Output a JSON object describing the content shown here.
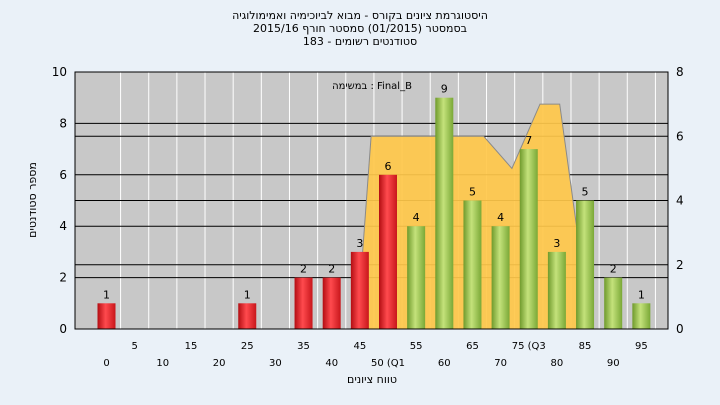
{
  "header": {
    "line1": "היסטוגרמת ציונים בקורס - מבוא לביוכימיה ואמימולוגיה",
    "line2": "בסמסטר (01/2015) סמסטר חורף 2015/16",
    "line3": "סטודנטים רשומים - 183"
  },
  "chart_data": {
    "type": "bar",
    "title": "היסטוגרמת ציונים בקורס - מבוא לביוכימיה ואמימולוגיה",
    "subtitle": "בסמסטר (01/2015) סמסטר חורף 2015/16 | סטודנטים רשומים - 183",
    "xlabel": "טווח ציונים",
    "ylabel": "מספר סטודנטים",
    "ylim": [
      0,
      10
    ],
    "y2lim": [
      0,
      8
    ],
    "yticks": [
      0,
      2,
      4,
      6,
      8,
      10
    ],
    "y2ticks": [
      0,
      2,
      4,
      6,
      8
    ],
    "grid": true,
    "series_label": "במשימה : Final_B",
    "xtick_labels_row1": [
      "5",
      "15",
      "25",
      "35",
      "45",
      "55",
      "65",
      "75 (Q3",
      "85",
      "95"
    ],
    "xtick_labels_row2": [
      "0",
      "10",
      "20",
      "30",
      "40",
      "50 (Q1",
      "60",
      "70",
      "80",
      "90"
    ],
    "categories": [
      "0",
      "5",
      "10",
      "15",
      "20",
      "25",
      "30",
      "35",
      "40",
      "45",
      "50",
      "55",
      "60",
      "65",
      "70",
      "75",
      "80",
      "85",
      "90",
      "95"
    ],
    "series": [
      {
        "values": [
          1,
          0,
          0,
          0,
          0,
          1,
          0,
          2,
          2,
          3,
          6,
          4,
          9,
          5,
          4,
          7,
          3,
          5,
          2,
          1
        ],
        "colors": [
          "red",
          "red",
          "red",
          "red",
          "red",
          "red",
          "red",
          "red",
          "red",
          "red",
          "red",
          "green",
          "green",
          "green",
          "green",
          "green",
          "green",
          "green",
          "green",
          "green"
        ]
      }
    ],
    "area_overlay": {
      "x": [
        44.5,
        47,
        52,
        57,
        62,
        67,
        72,
        77,
        80.5,
        86
      ],
      "y2": [
        0,
        6,
        6,
        6,
        6,
        6,
        5,
        7,
        7,
        0
      ]
    },
    "colors": {
      "fail_bar": "#e0161c",
      "pass_bar": "#8cbf3f",
      "area": "#ffc84a",
      "plot_bg": "#c8c8c8",
      "frame": "#000000"
    }
  }
}
